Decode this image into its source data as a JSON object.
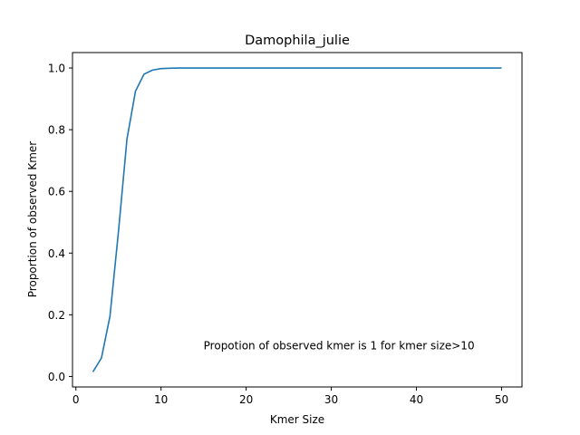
{
  "chart_data": {
    "type": "line",
    "title": "Damophila_julie",
    "xlabel": "Kmer Size",
    "ylabel": "Proportion of observed Kmer",
    "xlim": [
      -0.4,
      52.4
    ],
    "ylim": [
      -0.034,
      1.05
    ],
    "xticks": [
      0,
      10,
      20,
      30,
      40,
      50
    ],
    "yticks": [
      0.0,
      0.2,
      0.4,
      0.6,
      0.8,
      1.0
    ],
    "xtick_labels": [
      "0",
      "10",
      "20",
      "30",
      "40",
      "50"
    ],
    "ytick_labels": [
      "0.0",
      "0.2",
      "0.4",
      "0.6",
      "0.8",
      "1.0"
    ],
    "grid": false,
    "annotation": "Propotion of observed kmer is 1 for kmer size>10",
    "annotation_position": [
      15,
      0.1
    ],
    "line_color": "#1f77b4",
    "series": [
      {
        "x": [
          2,
          3,
          4,
          5,
          6,
          7,
          8,
          9,
          10,
          11,
          12,
          13,
          14,
          15,
          16,
          17,
          18,
          19,
          20,
          21,
          22,
          23,
          24,
          25,
          26,
          27,
          28,
          29,
          30,
          31,
          32,
          33,
          34,
          35,
          36,
          37,
          38,
          39,
          40,
          41,
          42,
          43,
          44,
          45,
          46,
          47,
          48,
          49,
          50
        ],
        "values": [
          0.015,
          0.06,
          0.195,
          0.47,
          0.77,
          0.925,
          0.98,
          0.993,
          0.998,
          0.999,
          1.0,
          1.0,
          1.0,
          1.0,
          1.0,
          1.0,
          1.0,
          1.0,
          1.0,
          1.0,
          1.0,
          1.0,
          1.0,
          1.0,
          1.0,
          1.0,
          1.0,
          1.0,
          1.0,
          1.0,
          1.0,
          1.0,
          1.0,
          1.0,
          1.0,
          1.0,
          1.0,
          1.0,
          1.0,
          1.0,
          1.0,
          1.0,
          1.0,
          1.0,
          1.0,
          1.0,
          1.0,
          1.0,
          1.0
        ]
      }
    ]
  }
}
